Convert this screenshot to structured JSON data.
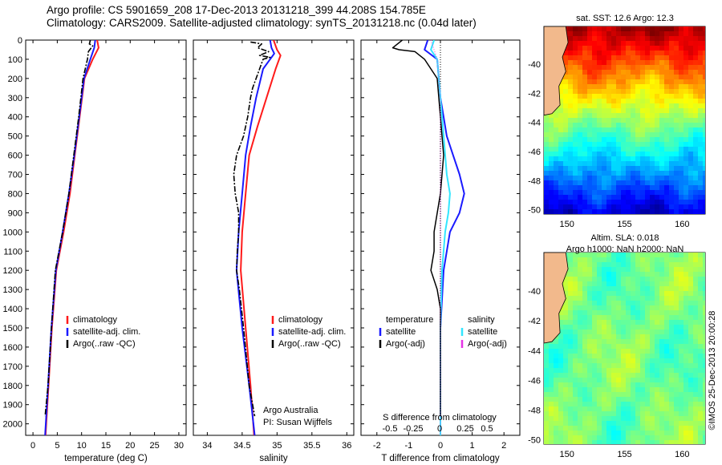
{
  "header": {
    "line1": "Argo profile: CS 5901659_208 17-Dec-2013 20131218_399 44.208S 154.785E",
    "line2": "Climatology: CARS2009. Satellite-adjusted climatology: synTS_20131218.nc (0.04d later)"
  },
  "colors": {
    "climatology": "#ff1a1a",
    "satellite": "#1a1aff",
    "argo": "#000000",
    "sal_satellite": "#33e6ff",
    "sal_argo": "#e633e6"
  },
  "depth_axis": {
    "ylim": [
      0,
      2060
    ],
    "ticks": [
      0,
      100,
      200,
      300,
      400,
      500,
      600,
      700,
      800,
      900,
      1000,
      1100,
      1200,
      1300,
      1400,
      1500,
      1600,
      1700,
      1800,
      1900,
      2000
    ]
  },
  "chart_data": [
    {
      "type": "line",
      "name": "temperature",
      "xlabel": "temperature (deg C)",
      "xlim": [
        -1.5,
        31.5
      ],
      "xticks": [
        0,
        5,
        10,
        15,
        20,
        25,
        30
      ],
      "legend": [
        "climatology",
        "satellite-adj. clim.",
        "Argo(..raw -QC)"
      ],
      "series": [
        {
          "key": "climatology",
          "style": "solid",
          "width": 2,
          "points": [
            [
              13.2,
              0
            ],
            [
              13.5,
              40
            ],
            [
              12.3,
              100
            ],
            [
              10.6,
              200
            ],
            [
              9.6,
              400
            ],
            [
              8.6,
              600
            ],
            [
              7.6,
              800
            ],
            [
              6.3,
              1000
            ],
            [
              4.8,
              1200
            ],
            [
              3.9,
              1500
            ],
            [
              3.2,
              1800
            ],
            [
              2.6,
              2060
            ]
          ]
        },
        {
          "key": "satellite",
          "style": "solid",
          "width": 2,
          "points": [
            [
              12.8,
              0
            ],
            [
              12.6,
              40
            ],
            [
              11.8,
              100
            ],
            [
              10.5,
              200
            ],
            [
              9.5,
              400
            ],
            [
              8.5,
              600
            ],
            [
              7.4,
              800
            ],
            [
              6.1,
              1000
            ],
            [
              4.7,
              1200
            ],
            [
              3.8,
              1500
            ],
            [
              3.1,
              1800
            ],
            [
              2.5,
              2060
            ]
          ]
        },
        {
          "key": "argo",
          "style": "dashdot",
          "width": 1.6,
          "points": [
            [
              11.8,
              0
            ],
            [
              11.6,
              20
            ],
            [
              12.3,
              30
            ],
            [
              11.4,
              60
            ],
            [
              11.2,
              100
            ],
            [
              10.3,
              200
            ],
            [
              9.4,
              400
            ],
            [
              8.4,
              600
            ],
            [
              7.4,
              800
            ],
            [
              6.1,
              1000
            ],
            [
              4.6,
              1200
            ],
            [
              3.8,
              1500
            ],
            [
              3.1,
              1800
            ],
            [
              2.5,
              1960
            ]
          ]
        }
      ]
    },
    {
      "type": "line",
      "name": "salinity",
      "xlabel": "salinity",
      "xlim": [
        33.8,
        36.1
      ],
      "xticks": [
        34,
        34.5,
        35,
        35.5,
        36
      ],
      "legend": [
        "climatology",
        "satellite-adj. clim.",
        "Argo(..raw -QC)"
      ],
      "annotation": [
        "Argo Australia",
        "PI: Susan Wijffels"
      ],
      "series": [
        {
          "key": "climatology",
          "style": "solid",
          "width": 2,
          "points": [
            [
              34.95,
              0
            ],
            [
              35.0,
              50
            ],
            [
              35.05,
              80
            ],
            [
              34.98,
              150
            ],
            [
              34.85,
              300
            ],
            [
              34.72,
              450
            ],
            [
              34.6,
              600
            ],
            [
              34.55,
              800
            ],
            [
              34.5,
              1000
            ],
            [
              34.48,
              1200
            ],
            [
              34.55,
              1500
            ],
            [
              34.62,
              1800
            ],
            [
              34.67,
              2060
            ]
          ]
        },
        {
          "key": "satellite",
          "style": "solid",
          "width": 2,
          "points": [
            [
              34.9,
              0
            ],
            [
              34.92,
              40
            ],
            [
              34.96,
              70
            ],
            [
              34.8,
              150
            ],
            [
              34.7,
              300
            ],
            [
              34.62,
              450
            ],
            [
              34.55,
              600
            ],
            [
              34.5,
              800
            ],
            [
              34.45,
              1000
            ],
            [
              34.42,
              1200
            ],
            [
              34.5,
              1500
            ],
            [
              34.6,
              1800
            ],
            [
              34.68,
              2060
            ]
          ]
        },
        {
          "key": "argo",
          "style": "dashdot",
          "width": 1.6,
          "points": [
            [
              34.62,
              10
            ],
            [
              34.78,
              20
            ],
            [
              34.72,
              40
            ],
            [
              34.88,
              60
            ],
            [
              34.75,
              80
            ],
            [
              34.9,
              90
            ],
            [
              34.8,
              100
            ],
            [
              34.75,
              150
            ],
            [
              34.65,
              250
            ],
            [
              34.62,
              300
            ],
            [
              34.58,
              400
            ],
            [
              34.52,
              500
            ],
            [
              34.42,
              600
            ],
            [
              34.38,
              700
            ],
            [
              34.4,
              800
            ],
            [
              34.45,
              900
            ],
            [
              34.45,
              1000
            ],
            [
              34.43,
              1100
            ],
            [
              34.42,
              1200
            ],
            [
              34.46,
              1300
            ],
            [
              34.52,
              1500
            ],
            [
              34.6,
              1800
            ],
            [
              34.65,
              1900
            ],
            [
              34.68,
              1960
            ]
          ]
        }
      ]
    },
    {
      "type": "line",
      "name": "difference",
      "xlabel": "T difference from climatology",
      "xlabel_top": "S difference from climatology",
      "xlim": [
        -2.5,
        2.5
      ],
      "xticks": [
        -2,
        -1,
        0,
        1,
        2
      ],
      "s_ticks": [
        "-0.5",
        "-0.25",
        "0",
        "0.25",
        "0.5"
      ],
      "legend_temperature": [
        "temperature",
        "satellite",
        "Argo(-adj)"
      ],
      "legend_salinity": [
        "salinity",
        "satellite",
        "Argo(-adj)"
      ],
      "series": [
        {
          "key": "satellite",
          "style": "solid",
          "width": 2,
          "points": [
            [
              -0.4,
              0
            ],
            [
              -0.5,
              50
            ],
            [
              -0.1,
              100
            ],
            [
              0,
              300
            ],
            [
              0.2,
              500
            ],
            [
              0.4,
              600
            ],
            [
              0.6,
              700
            ],
            [
              0.75,
              800
            ],
            [
              0.6,
              900
            ],
            [
              0.3,
              1000
            ],
            [
              0.1,
              1200
            ],
            [
              0,
              1500
            ],
            [
              0,
              2060
            ]
          ]
        },
        {
          "key": "sal_satellite",
          "style": "solid",
          "width": 2,
          "points": [
            [
              -0.2,
              0
            ],
            [
              -0.3,
              50
            ],
            [
              -0.1,
              100
            ],
            [
              0,
              300
            ],
            [
              0.1,
              500
            ],
            [
              0.2,
              700
            ],
            [
              0.3,
              800
            ],
            [
              0.25,
              900
            ],
            [
              0.15,
              1000
            ],
            [
              0.05,
              1200
            ],
            [
              0,
              1500
            ],
            [
              0,
              2060
            ]
          ]
        },
        {
          "key": "argo",
          "style": "solid",
          "width": 1.5,
          "points": [
            [
              -1.2,
              0
            ],
            [
              -1.5,
              40
            ],
            [
              -1.3,
              50
            ],
            [
              -0.8,
              60
            ],
            [
              -0.5,
              100
            ],
            [
              -0.1,
              200
            ],
            [
              0,
              400
            ],
            [
              0.1,
              600
            ],
            [
              0,
              800
            ],
            [
              -0.2,
              1000
            ],
            [
              -0.2,
              1100
            ],
            [
              -0.3,
              1200
            ],
            [
              -0.1,
              1300
            ],
            [
              0,
              1400
            ],
            [
              0,
              1960
            ]
          ]
        },
        {
          "key": "sal_argo",
          "style": "dot",
          "width": 1,
          "points": [
            [
              -0.3,
              0
            ],
            [
              -0.1,
              100
            ],
            [
              0,
              300
            ],
            [
              0,
              2060
            ]
          ]
        }
      ]
    },
    {
      "type": "heatmap",
      "name": "sst-map",
      "title": "sat. SST: 12.6 Argo: 12.3",
      "xticks": [
        150,
        155,
        160
      ],
      "yticks": [
        -40,
        -42,
        -44,
        -46,
        -48,
        -50
      ],
      "xlim": [
        148,
        162
      ],
      "ylim": [
        -50.3,
        -37.4
      ],
      "marker": [
        154.785,
        -44.208
      ]
    },
    {
      "type": "heatmap",
      "name": "sla-map",
      "title": "Altim. SLA: 0.018",
      "subtitle": "Argo h1000: NaN h2000: NaN",
      "xticks": [
        150,
        155,
        160
      ],
      "yticks": [
        -40,
        -42,
        -44,
        -46,
        -48,
        -50
      ],
      "xlim": [
        148,
        162
      ],
      "ylim": [
        -50.3,
        -37.4
      ],
      "marker": [
        154.785,
        -44.208
      ]
    }
  ],
  "sidebar_label": "©IMOS 25-Dec-2013 20:00:28"
}
